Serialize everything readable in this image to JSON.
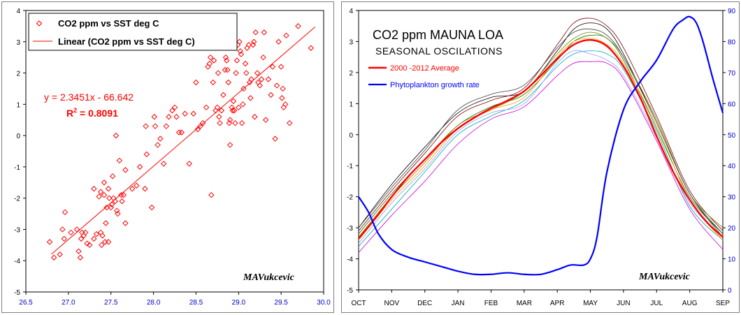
{
  "chart_data": [
    {
      "type": "scatter",
      "legend": [
        {
          "label": "CO2 ppm  vs SST deg C",
          "marker": "diamond"
        },
        {
          "label": "Linear (CO2 ppm  vs SST deg C)",
          "marker": "line"
        }
      ],
      "legend_position": "top-left",
      "xlim": [
        26.5,
        30.0
      ],
      "ylim": [
        -5,
        4
      ],
      "x_ticks": [
        "26.5",
        "27.0",
        "27.5",
        "28.0",
        "28.5",
        "29.0",
        "29.5",
        "30.0"
      ],
      "y_ticks": [
        "-5",
        "-4",
        "-3",
        "-2",
        "-1",
        "0",
        "1",
        "2",
        "3",
        "4"
      ],
      "grid": false,
      "trendline": {
        "slope": 2.3451,
        "intercept": -66.642,
        "x_range": [
          26.8,
          29.9
        ]
      },
      "equation_text": "y = 2.3451x - 66.642",
      "r2_prefix": "R",
      "r2_sup": "2",
      "r2_value": " = 0.8091",
      "signature": "MAVukcevic",
      "series": [
        {
          "x": [
            26.78,
            26.83,
            26.9,
            26.93,
            26.95,
            26.96,
            27.03,
            27.1,
            27.12,
            27.14,
            27.15,
            27.16,
            27.18,
            27.2,
            27.22,
            27.25,
            27.3,
            27.3,
            27.33,
            27.36,
            27.38,
            27.38,
            27.39,
            27.4,
            27.42,
            27.42,
            27.43,
            27.44,
            27.45,
            27.47,
            27.47,
            27.48,
            27.5,
            27.51,
            27.52,
            27.53,
            27.55,
            27.56,
            27.57,
            27.58,
            27.6,
            27.62,
            27.63,
            27.65,
            27.67,
            27.67,
            27.75,
            27.8,
            27.84,
            27.9,
            27.91,
            27.92,
            27.98,
            28.01,
            28.02,
            28.05,
            28.08,
            28.12,
            28.15,
            28.18,
            28.22,
            28.25,
            28.27,
            28.3,
            28.33,
            28.37,
            28.42,
            28.47,
            28.5,
            28.52,
            28.55,
            28.58,
            28.62,
            28.64,
            28.66,
            28.67,
            28.68,
            28.7,
            28.71,
            28.73,
            28.75,
            28.76,
            28.77,
            28.78,
            28.8,
            28.82,
            28.84,
            28.85,
            28.86,
            28.87,
            28.88,
            28.89,
            28.9,
            28.9,
            28.92,
            28.93,
            28.94,
            28.95,
            28.96,
            28.97,
            28.98,
            28.99,
            29.0,
            29.01,
            29.02,
            29.03,
            29.04,
            29.05,
            29.06,
            29.08,
            29.09,
            29.1,
            29.12,
            29.13,
            29.14,
            29.15,
            29.17,
            29.18,
            29.19,
            29.2,
            29.22,
            29.23,
            29.25,
            29.27,
            29.29,
            29.3,
            29.32,
            29.35,
            29.38,
            29.4,
            29.43,
            29.45,
            29.47,
            29.5,
            29.51,
            29.52,
            29.53,
            29.55,
            29.56,
            29.6,
            29.7,
            29.85
          ],
          "y": [
            -3.4,
            -3.9,
            -3.8,
            -3.0,
            -3.3,
            -2.45,
            -3.1,
            -3.0,
            -3.7,
            -3.9,
            -3.3,
            -3.1,
            -3.2,
            -3.1,
            -3.45,
            -3.5,
            -1.7,
            -3.3,
            -3.15,
            -1.95,
            -3.1,
            -1.8,
            -3.5,
            -3.2,
            -1.9,
            -1.5,
            -3.4,
            -2.8,
            -2.3,
            -1.7,
            -3.4,
            -2.0,
            -2.3,
            -2.2,
            -1.3,
            -2.0,
            -2.1,
            0.0,
            -2.4,
            -2.5,
            -0.8,
            -1.9,
            -2.1,
            -1.9,
            -1.1,
            -2.8,
            -1.7,
            -1.6,
            -1.0,
            -1.7,
            0.3,
            -0.6,
            -2.3,
            0.6,
            0.3,
            -0.3,
            -0.1,
            -0.9,
            0.3,
            0.6,
            0.8,
            0.9,
            0.6,
            0.1,
            0.1,
            0.7,
            -0.9,
            0.7,
            1.7,
            0.2,
            0.3,
            0.4,
            0.9,
            2.2,
            2.3,
            2.5,
            -1.9,
            1.7,
            2.4,
            0.8,
            0.9,
            2.0,
            0.6,
            0.4,
            0.8,
            1.3,
            2.1,
            2.5,
            2.4,
            2.1,
            1.7,
            0.4,
            0.5,
            -0.3,
            0.9,
            0.8,
            1.1,
            0.8,
            0.4,
            2.0,
            2.4,
            2.9,
            0.9,
            3.0,
            2.7,
            2.6,
            0.4,
            1.0,
            1.5,
            2.3,
            2.0,
            2.8,
            2.9,
            1.7,
            1.2,
            1.8,
            2.9,
            3.0,
            0.6,
            3.3,
            2.0,
            1.7,
            1.6,
            1.8,
            2.5,
            3.3,
            0.5,
            1.8,
            1.3,
            2.2,
            -0.1,
            1.6,
            3.0,
            2.2,
            1.2,
            1.5,
            0.9,
            1.0,
            3.2,
            0.4,
            3.5,
            2.8
          ]
        }
      ]
    },
    {
      "type": "line",
      "title": "CO2 ppm MAUNA LOA",
      "subtitle": "SEASONAL OSCILATIONS",
      "categories": [
        "OCT",
        "NOV",
        "DEC",
        "JAN",
        "FEB",
        "MAR",
        "APR",
        "MAY",
        "JUN",
        "JUL",
        "AUG",
        "SEP"
      ],
      "ylim_left": [
        -5,
        4
      ],
      "ylim_right": [
        0,
        90
      ],
      "y_ticks_left": [
        "-5",
        "-4",
        "-3",
        "-2",
        "-1",
        "0",
        "1",
        "2",
        "3",
        "4"
      ],
      "y_ticks_right": [
        "0",
        "10",
        "20",
        "30",
        "40",
        "50",
        "60",
        "70",
        "80",
        "90"
      ],
      "grid": false,
      "legend_position": "top-left",
      "signature": "MAVukcevic",
      "colors": {
        "average": "#ff0000",
        "phyto": "#0000ff",
        "axis_left": "#000000",
        "axis_right": "#0000cc"
      },
      "legend": [
        {
          "label": "2000 -2012 Average",
          "color": "#ff0000"
        },
        {
          "label": "Phytoplankton growth  rate",
          "color": "#0000ff"
        }
      ],
      "series": [
        {
          "name": "2000 -2012 Average",
          "axis": "left",
          "color": "#ff0000",
          "x": [
            0,
            0.5,
            1,
            1.5,
            2,
            2.5,
            3,
            3.5,
            4,
            4.5,
            5,
            5.5,
            6,
            6.5,
            7,
            7.5,
            8,
            8.5,
            9,
            9.5,
            10,
            10.5,
            11
          ],
          "y": [
            -3.35,
            -2.7,
            -2.0,
            -1.35,
            -0.8,
            -0.25,
            0.2,
            0.55,
            0.85,
            1.1,
            1.4,
            1.9,
            2.45,
            2.9,
            3.05,
            2.85,
            2.2,
            1.2,
            -0.05,
            -1.2,
            -2.1,
            -2.8,
            -3.3
          ]
        },
        {
          "name": "Phytoplankton growth  rate",
          "axis": "right",
          "color": "#0000ff",
          "x": [
            0,
            0.3,
            0.6,
            1,
            1.5,
            2,
            2.5,
            3,
            3.5,
            4,
            4.5,
            5,
            5.5,
            6,
            6.4,
            6.8,
            7,
            7.2,
            7.5,
            8,
            8.5,
            9,
            9.5,
            9.8,
            10,
            10.2,
            10.4,
            10.7,
            11
          ],
          "y": [
            30,
            25,
            18,
            13,
            10.5,
            9,
            7.5,
            6,
            5,
            5,
            5.5,
            5,
            5,
            6.5,
            8,
            8,
            10,
            17,
            38,
            58,
            67,
            74,
            84,
            87,
            88,
            86,
            80,
            68,
            57
          ]
        },
        {
          "axis": "left",
          "color": "#000000",
          "x": [
            0,
            1,
            2,
            3,
            4,
            5,
            6,
            6.5,
            7,
            7.5,
            8,
            9,
            10,
            11
          ],
          "y": [
            -3.0,
            -1.6,
            -0.4,
            0.7,
            1.2,
            1.4,
            2.7,
            3.4,
            3.6,
            3.4,
            2.6,
            0.4,
            -1.9,
            -3.2
          ]
        },
        {
          "axis": "left",
          "color": "#800000",
          "x": [
            0,
            1,
            2,
            3,
            4,
            5,
            6,
            6.5,
            7,
            7.5,
            8,
            9,
            10,
            11
          ],
          "y": [
            -3.1,
            -1.8,
            -0.6,
            0.6,
            1.1,
            1.5,
            2.9,
            3.6,
            3.75,
            3.5,
            2.8,
            0.6,
            -1.8,
            -3.1
          ]
        },
        {
          "axis": "left",
          "color": "#008000",
          "x": [
            0,
            1,
            2,
            3,
            4,
            5,
            6,
            6.5,
            7,
            7.5,
            8,
            9,
            10,
            11
          ],
          "y": [
            -3.2,
            -1.9,
            -0.8,
            0.3,
            0.9,
            1.3,
            2.4,
            3.0,
            3.2,
            3.1,
            2.4,
            0.2,
            -2.0,
            -3.2
          ]
        },
        {
          "axis": "left",
          "color": "#00aaaa",
          "x": [
            0,
            1,
            2,
            3,
            4,
            5,
            6,
            6.5,
            7,
            7.5,
            8,
            9,
            10,
            11
          ],
          "y": [
            -3.6,
            -2.4,
            -1.2,
            0.0,
            0.6,
            1.1,
            2.2,
            2.6,
            2.7,
            2.6,
            2.1,
            0.1,
            -2.3,
            -3.4
          ]
        },
        {
          "axis": "left",
          "color": "#cc00cc",
          "x": [
            0,
            1,
            2,
            3,
            4,
            5,
            6,
            6.5,
            7,
            7.5,
            8,
            9,
            10,
            11
          ],
          "y": [
            -3.8,
            -2.6,
            -1.5,
            -0.3,
            0.5,
            0.9,
            1.9,
            2.3,
            2.35,
            2.3,
            1.8,
            -0.2,
            -2.4,
            -3.7
          ]
        },
        {
          "axis": "left",
          "color": "#9999ff",
          "x": [
            0,
            1,
            2,
            3,
            4,
            5,
            6,
            6.5,
            7,
            7.5,
            8,
            9,
            10,
            11
          ],
          "y": [
            -3.5,
            -2.2,
            -1.1,
            0.1,
            0.7,
            1.0,
            2.3,
            2.7,
            2.6,
            2.4,
            1.9,
            -0.1,
            -2.2,
            -3.3
          ]
        },
        {
          "axis": "left",
          "color": "#808000",
          "x": [
            0,
            1,
            2,
            3,
            4,
            5,
            6,
            6.5,
            7,
            7.5,
            8,
            9,
            10,
            11
          ],
          "y": [
            -3.3,
            -2.0,
            -0.9,
            0.3,
            0.8,
            1.4,
            2.6,
            3.1,
            3.3,
            3.1,
            2.5,
            0.5,
            -1.9,
            -3.0
          ]
        },
        {
          "axis": "left",
          "color": "#404040",
          "x": [
            0,
            1,
            2,
            3,
            4,
            5,
            6,
            6.5,
            7,
            7.5,
            8,
            9,
            10,
            11
          ],
          "y": [
            -3.0,
            -1.7,
            -0.5,
            0.8,
            1.3,
            1.6,
            2.8,
            3.3,
            3.4,
            3.2,
            2.5,
            0.4,
            -1.9,
            -3.3
          ]
        },
        {
          "axis": "left",
          "color": "#ff9900",
          "x": [
            0,
            1,
            2,
            3,
            4,
            5,
            6,
            6.5,
            7,
            7.5,
            8,
            9,
            10,
            11
          ],
          "y": [
            -3.4,
            -2.1,
            -1.0,
            0.2,
            0.8,
            1.2,
            2.5,
            3.0,
            3.1,
            2.9,
            2.3,
            0.3,
            -2.1,
            -3.4
          ]
        }
      ]
    }
  ]
}
